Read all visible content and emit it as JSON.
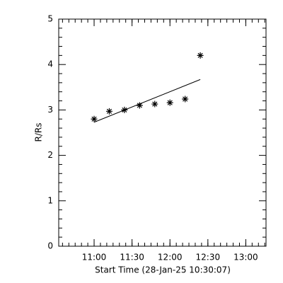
{
  "chart_data": {
    "type": "scatter",
    "xlabel": "Start Time (28-Jan-25 10:30:07)",
    "ylabel": "R/Rs",
    "x": [
      660,
      672,
      684,
      696,
      708,
      720,
      732,
      744
    ],
    "values": [
      2.8,
      2.97,
      3.0,
      3.1,
      3.13,
      3.16,
      3.24,
      4.2
    ],
    "fit": {
      "x": [
        660,
        744
      ],
      "values": [
        2.73,
        3.67
      ]
    },
    "color": "#000000",
    "xlim": [
      632,
      796
    ],
    "xticks": [
      {
        "value": 660,
        "label": "11:00"
      },
      {
        "value": 690,
        "label": "11:30"
      },
      {
        "value": 720,
        "label": "12:00"
      },
      {
        "value": 750,
        "label": "12:30"
      },
      {
        "value": 780,
        "label": "13:00"
      }
    ],
    "ylim": [
      0,
      5
    ],
    "yticks": [
      0,
      1,
      2,
      3,
      4,
      5
    ]
  }
}
